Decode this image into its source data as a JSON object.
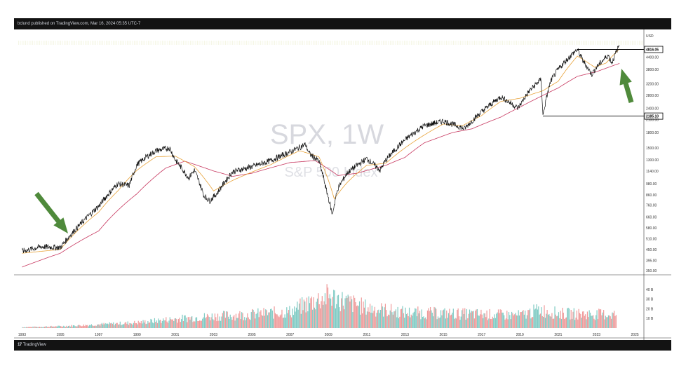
{
  "header": {
    "attribution": "bclund published on TradingView.com, Mar 16, 2024 05:35 UTC-7"
  },
  "footer": {
    "brand_mark": "17",
    "brand_name": "TradingView"
  },
  "chart_data": {
    "type": "line",
    "symbol": "SPX, 1W",
    "description": "S&P 500 Index",
    "currency": "USD",
    "y_scale": "log",
    "ylim": [
      350,
      5000
    ],
    "xlim": [
      1992.8,
      2025.4
    ],
    "y_ticks": [
      "4816.05",
      "4400.00",
      "3800.00",
      "3200.00",
      "2800.00",
      "2400.00",
      "2100.00",
      "1800.00",
      "1500.00",
      "1300.00",
      "1140.00",
      "980.00",
      "860.00",
      "760.00",
      "660.00",
      "580.00",
      "510.00",
      "450.00",
      "395.00",
      "350.00"
    ],
    "x_ticks": [
      "1993",
      "1995",
      "1997",
      "1999",
      "2001",
      "2003",
      "2005",
      "2007",
      "2009",
      "2011",
      "2013",
      "2015",
      "2017",
      "2019",
      "2021",
      "2023",
      "2025"
    ],
    "price_labels": [
      "4816.05",
      "2185.10"
    ],
    "series": [
      {
        "name": "",
        "color": "#111111",
        "x": [
          1993.0,
          1994.0,
          1995.0,
          1996.0,
          1997.0,
          1998.0,
          1998.6,
          1999.0,
          1999.5,
          2000.0,
          2000.7,
          2001.0,
          2001.7,
          2002.0,
          2002.5,
          2002.8,
          2003.2,
          2004.0,
          2005.0,
          2006.0,
          2007.0,
          2007.8,
          2008.0,
          2008.5,
          2008.9,
          2009.2,
          2009.5,
          2010.0,
          2011.0,
          2011.7,
          2012.0,
          2013.0,
          2014.0,
          2015.0,
          2015.7,
          2016.1,
          2017.0,
          2018.0,
          2018.9,
          2019.5,
          2020.1,
          2020.2,
          2020.6,
          2021.0,
          2021.99,
          2022.3,
          2022.75,
          2023.0,
          2023.6,
          2023.8,
          2024.2
        ],
        "y": [
          440,
          465,
          460,
          600,
          750,
          980,
          960,
          1230,
          1350,
          1450,
          1500,
          1300,
          1050,
          1150,
          850,
          800,
          880,
          1130,
          1200,
          1290,
          1430,
          1560,
          1400,
          1280,
          900,
          680,
          930,
          1120,
          1320,
          1150,
          1300,
          1650,
          1950,
          2060,
          1950,
          1880,
          2300,
          2750,
          2400,
          2950,
          3380,
          2190,
          3300,
          3800,
          4816,
          4200,
          3580,
          3900,
          4500,
          4100,
          5100
        ]
      },
      {
        "name": "",
        "color": "#e8a33a",
        "x": [
          1993.0,
          1995.0,
          1997.0,
          1998.0,
          1999.0,
          2000.0,
          2001.0,
          2002.0,
          2003.0,
          2004.0,
          2006.0,
          2007.5,
          2008.5,
          2009.3,
          2010.0,
          2011.0,
          2012.0,
          2013.0,
          2015.0,
          2016.0,
          2017.0,
          2018.0,
          2019.0,
          2020.2,
          2021.0,
          2022.0,
          2022.9,
          2023.5,
          2024.2
        ],
        "y": [
          430,
          450,
          700,
          900,
          1150,
          1350,
          1360,
          1200,
          900,
          1020,
          1230,
          1450,
          1350,
          820,
          1000,
          1220,
          1250,
          1500,
          1990,
          1950,
          2200,
          2600,
          2700,
          2950,
          3300,
          4450,
          3900,
          4100,
          4850
        ]
      },
      {
        "name": "",
        "color": "#c7375f",
        "x": [
          1993.0,
          1995.0,
          1997.0,
          1999.0,
          2000.5,
          2001.5,
          2003.0,
          2004.0,
          2005.0,
          2007.0,
          2008.3,
          2009.5,
          2010.5,
          2012.0,
          2013.0,
          2014.0,
          2015.5,
          2016.5,
          2018.0,
          2019.0,
          2020.0,
          2021.0,
          2022.0,
          2023.0,
          2024.2
        ],
        "y": [
          365,
          430,
          560,
          870,
          1180,
          1280,
          1140,
          1070,
          1110,
          1260,
          1290,
          1080,
          1110,
          1220,
          1340,
          1590,
          1800,
          1880,
          2160,
          2430,
          2730,
          3050,
          3500,
          3700,
          4080
        ]
      }
    ],
    "volume": {
      "unit": "B",
      "y_ticks": [
        "40 B",
        "30 B",
        "20 B",
        "10 B"
      ],
      "ylim": [
        0,
        45
      ],
      "x": [
        1993,
        1995,
        1997,
        1999,
        2001,
        2003,
        2005,
        2007,
        2008,
        2009,
        2010,
        2011,
        2013,
        2015,
        2017,
        2019,
        2020,
        2021,
        2023,
        2024
      ],
      "values": [
        1,
        2,
        4,
        6,
        10,
        13,
        15,
        18,
        28,
        35,
        28,
        22,
        17,
        16,
        15,
        14,
        20,
        16,
        15,
        15
      ],
      "colors": [
        "#ef9a9a",
        "#80cbc4"
      ]
    }
  }
}
